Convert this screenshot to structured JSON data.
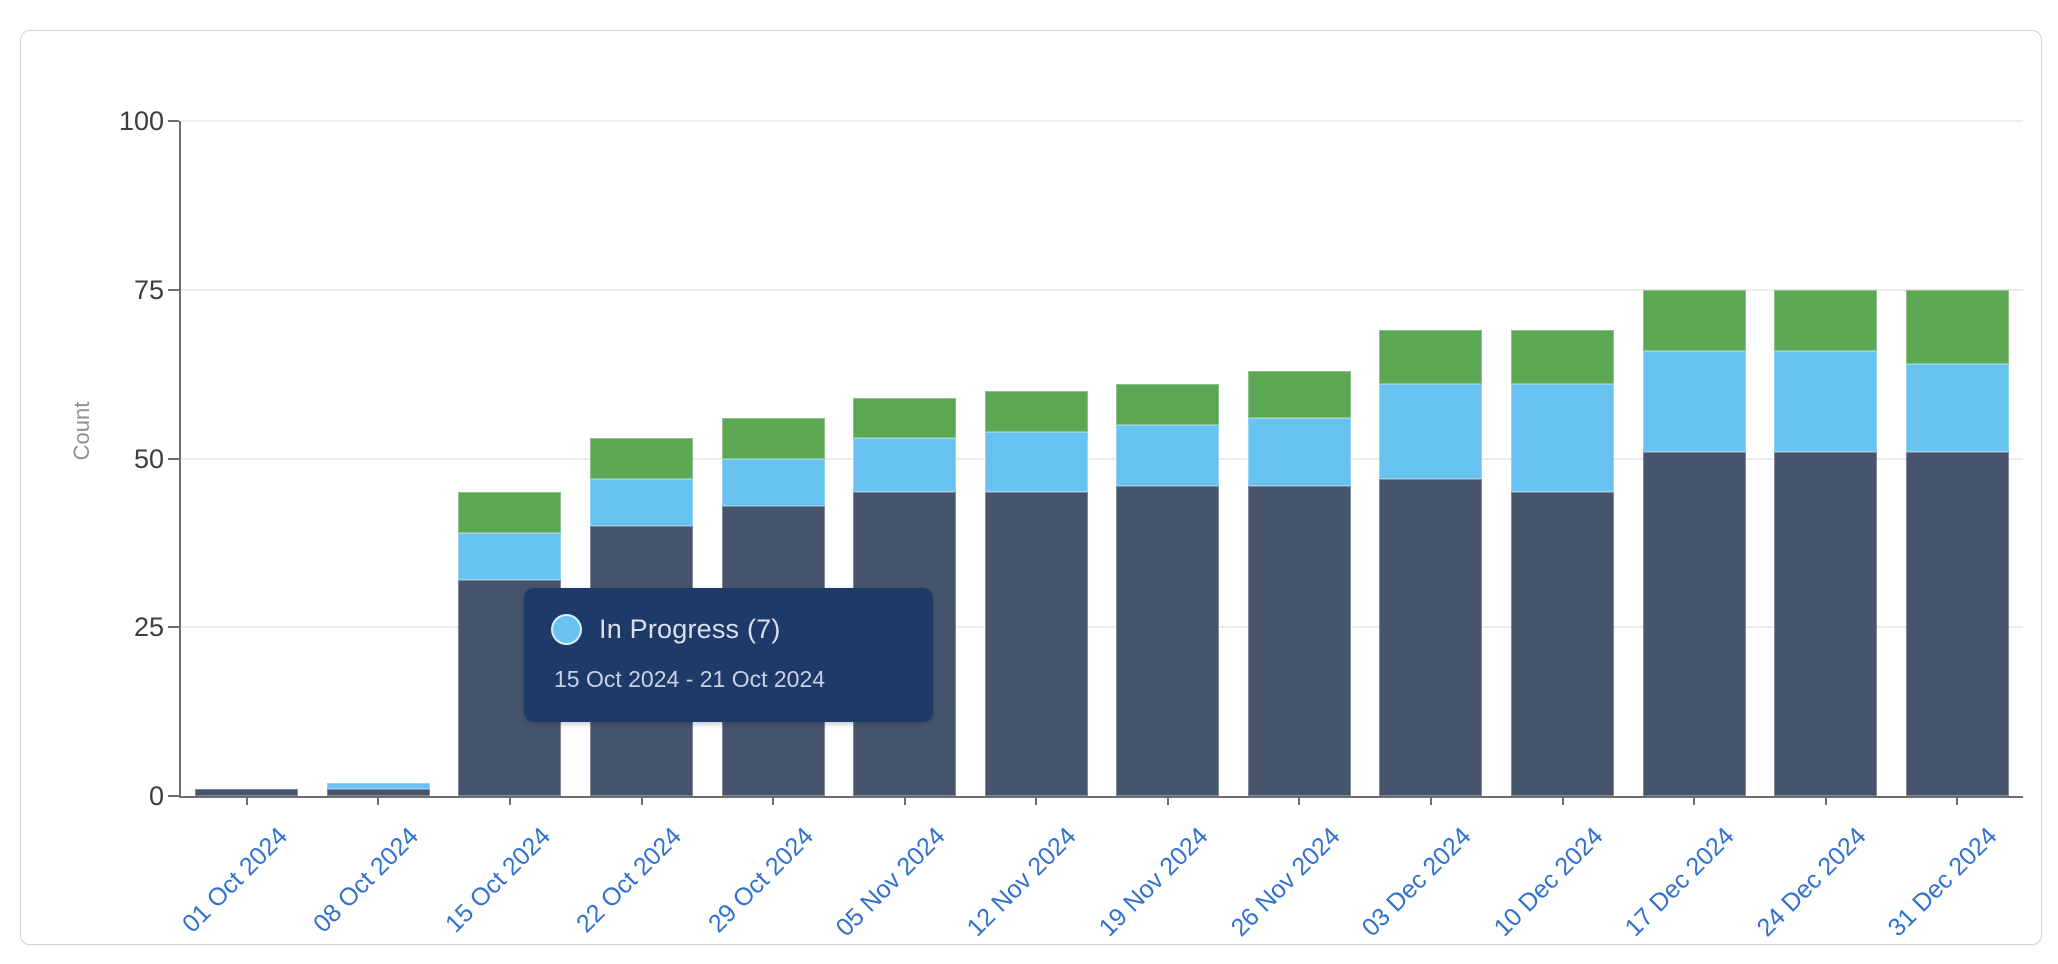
{
  "chart_data": {
    "type": "bar",
    "stacked": true,
    "title": "",
    "xlabel": "",
    "ylabel": "Count",
    "ylim": [
      0,
      100
    ],
    "yticks": [
      0,
      25,
      50,
      75,
      100
    ],
    "grid": true,
    "legend_position": "none",
    "categories": [
      "01 Oct 2024",
      "08 Oct 2024",
      "15 Oct 2024",
      "22 Oct 2024",
      "29 Oct 2024",
      "05 Nov 2024",
      "12 Nov 2024",
      "19 Nov 2024",
      "26 Nov 2024",
      "03 Dec 2024",
      "10 Dec 2024",
      "17 Dec 2024",
      "24 Dec 2024",
      "31 Dec 2024"
    ],
    "series": [
      {
        "key": "series-bottom",
        "name": "",
        "color": "#47556c",
        "values": [
          1,
          1,
          32,
          40,
          43,
          45,
          45,
          46,
          46,
          47,
          45,
          51,
          51,
          51
        ]
      },
      {
        "key": "in-progress",
        "name": "In Progress",
        "color": "#68c2ef",
        "values": [
          0,
          1,
          7,
          7,
          7,
          8,
          9,
          9,
          10,
          14,
          16,
          15,
          15,
          13
        ]
      },
      {
        "key": "series-top",
        "name": "",
        "color": "#5ba754",
        "values": [
          0,
          0,
          6,
          6,
          6,
          6,
          6,
          6,
          7,
          8,
          8,
          9,
          9,
          11
        ]
      }
    ],
    "totals": [
      1,
      2,
      45,
      53,
      56,
      59,
      60,
      61,
      63,
      69,
      69,
      75,
      75,
      75
    ]
  },
  "tooltip": {
    "title": "In Progress (7)",
    "date_range": "15 Oct 2024 - 21 Oct 2024",
    "swatch_color": "#6ac2ef",
    "bg": "#1d3a69"
  },
  "colors": {
    "x_label": "#3070cf",
    "y_label": "#3d3d3d",
    "axis": "#6e6e6e",
    "gridline": "#ececf0",
    "card_border": "#d3d3dc"
  }
}
